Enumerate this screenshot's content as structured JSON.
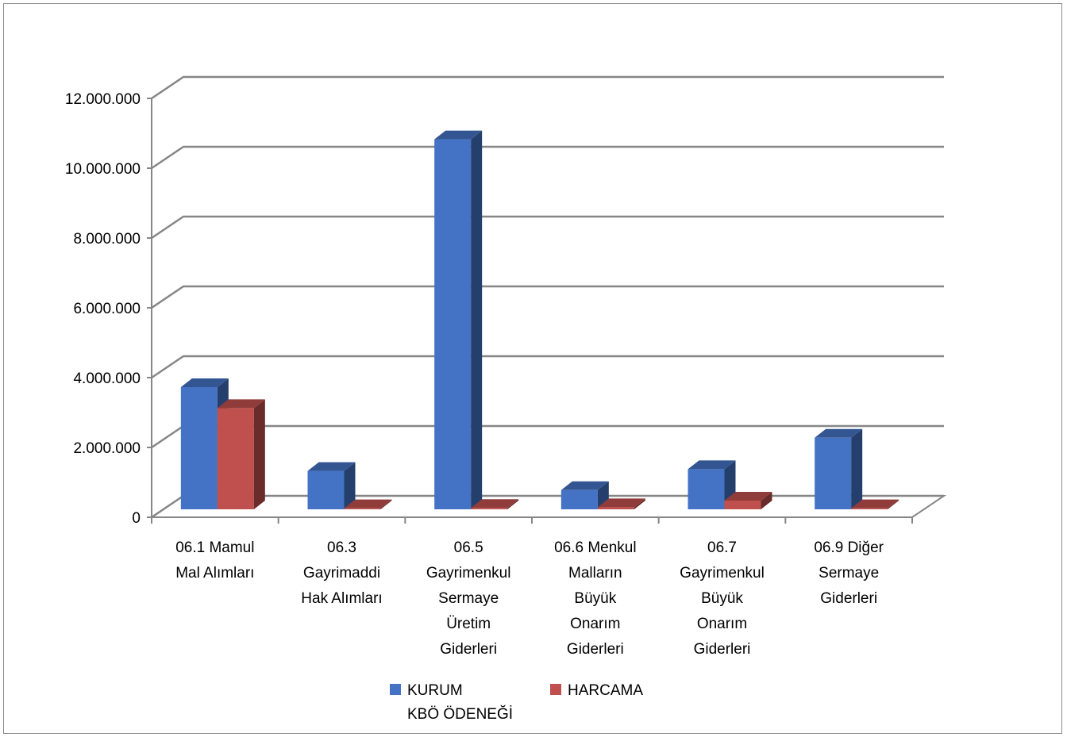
{
  "chart_data": {
    "type": "bar",
    "title": "",
    "xlabel": "",
    "ylabel": "",
    "ylim": [
      0,
      12000000
    ],
    "y_ticks": [
      {
        "value": 0,
        "label": "0"
      },
      {
        "value": 2000000,
        "label": "2.000.000"
      },
      {
        "value": 4000000,
        "label": "4.000.000"
      },
      {
        "value": 6000000,
        "label": "6.000.000"
      },
      {
        "value": 8000000,
        "label": "8.000.000"
      },
      {
        "value": 10000000,
        "label": "10.000.000"
      },
      {
        "value": 12000000,
        "label": "12.000.000"
      }
    ],
    "categories": [
      [
        "06.1 Mamul",
        "Mal Alımları"
      ],
      [
        "06.3",
        "Gayrimaddi",
        "Hak Alımları"
      ],
      [
        "06.5",
        "Gayrimenkul",
        "Sermaye",
        "Üretim",
        "Giderleri"
      ],
      [
        "06.6 Menkul",
        "Malların",
        "Büyük",
        "Onarım",
        "Giderleri"
      ],
      [
        "06.7",
        "Gayrimenkul",
        "Büyük",
        "Onarım",
        "Giderleri"
      ],
      [
        "06.9 Diğer",
        "Sermaye",
        "Giderleri"
      ]
    ],
    "series": [
      {
        "name": [
          "KURUM",
          "KBÖ ÖDENEĞİ"
        ],
        "color": "#4472c4",
        "values": [
          3500000,
          1100000,
          10600000,
          550000,
          1150000,
          2050000
        ]
      },
      {
        "name": [
          "HARCAMA"
        ],
        "color": "#c0504d",
        "values": [
          2900000,
          30000,
          40000,
          60000,
          250000,
          30000
        ]
      }
    ],
    "grid": true,
    "legend_position": "bottom"
  }
}
